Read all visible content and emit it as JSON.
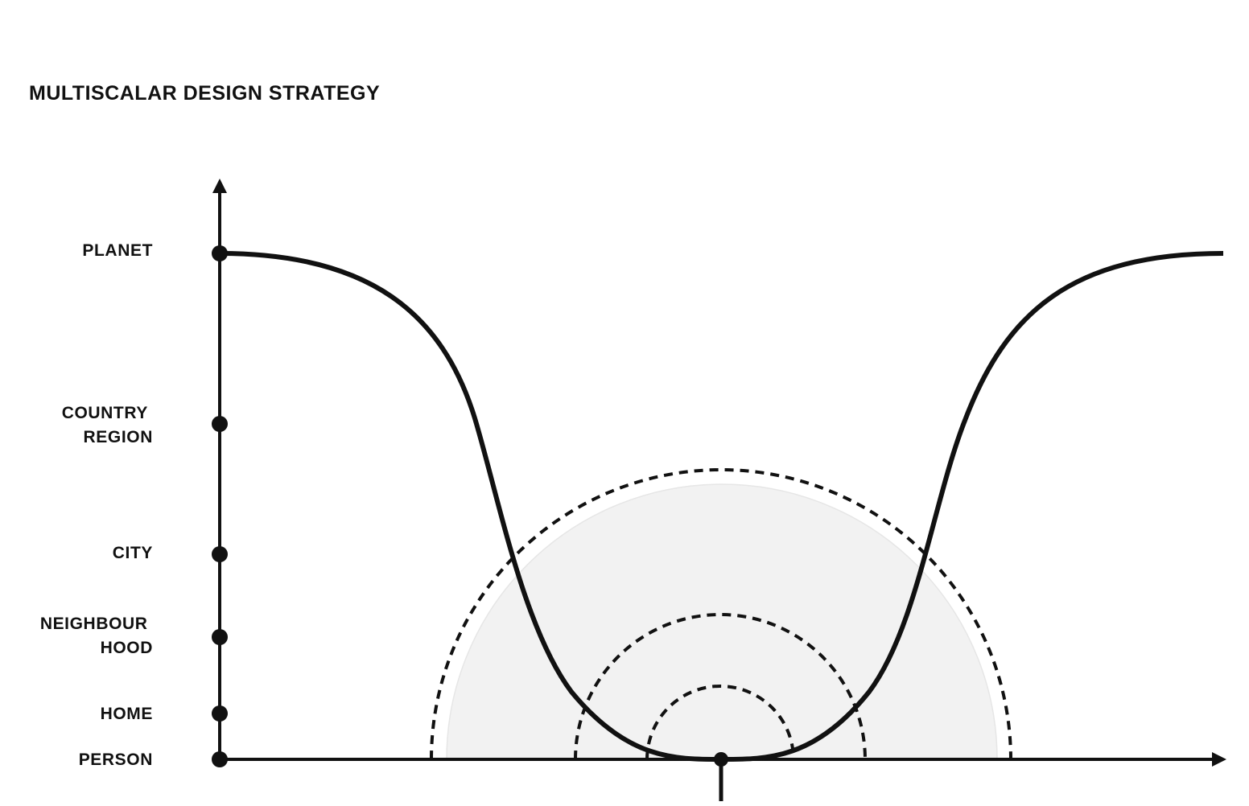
{
  "title": "MULTISCALAR DESIGN STRATEGY",
  "scale_levels": [
    {
      "key": "planet",
      "lines": [
        "PLANET"
      ]
    },
    {
      "key": "country-region",
      "lines": [
        "COUNTRY",
        "REGION"
      ]
    },
    {
      "key": "city",
      "lines": [
        "CITY"
      ]
    },
    {
      "key": "neighbourhood",
      "lines": [
        "NEIGHBOUR",
        "HOOD"
      ]
    },
    {
      "key": "home",
      "lines": [
        "HOME"
      ]
    },
    {
      "key": "person",
      "lines": [
        "PERSON"
      ]
    }
  ],
  "colors": {
    "ink": "#111111",
    "circle_fill": "#f2f2f2",
    "background": "#ffffff"
  }
}
